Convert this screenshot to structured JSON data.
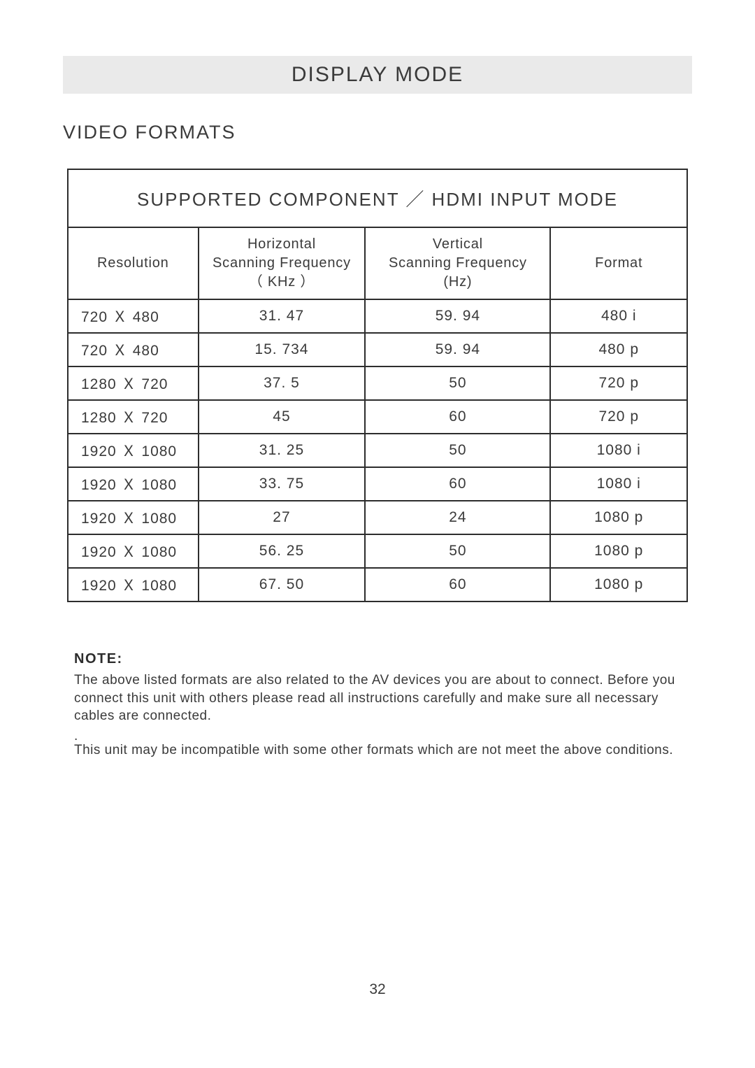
{
  "page": {
    "title": "DISPLAY MODE",
    "section_title": "VIDEO FORMATS",
    "page_number": "32",
    "background_color": "#ffffff",
    "title_bar_bg": "#eaeaea",
    "text_color": "#3a3a3a",
    "border_color": "#2d2d2d"
  },
  "table": {
    "caption": "SUPPORTED COMPONENT ／ HDMI INPUT MODE",
    "columns": [
      "Resolution",
      "Horizontal\nScanning Frequency\n（ KHz ）",
      "Vertical\nScanning Frequency\n(Hz)",
      "Format"
    ],
    "col_widths_pct": [
      21,
      27,
      30,
      22
    ],
    "rows": [
      [
        "720 Ｘ 480",
        "31. 47",
        "59. 94",
        "480 i"
      ],
      [
        "720 Ｘ 480",
        "15. 734",
        "59. 94",
        "480 p"
      ],
      [
        "1280 Ｘ 720",
        "37. 5",
        "50",
        "720 p"
      ],
      [
        "1280 Ｘ 720",
        "45",
        "60",
        "720 p"
      ],
      [
        "1920 Ｘ 1080",
        "31. 25",
        "50",
        "1080 i"
      ],
      [
        "1920 Ｘ 1080",
        "33. 75",
        "60",
        "1080 i"
      ],
      [
        "1920 Ｘ 1080",
        "27",
        "24",
        "1080 p"
      ],
      [
        "1920 Ｘ 1080",
        "56. 25",
        "50",
        "1080 p"
      ],
      [
        "1920 Ｘ 1080",
        "67. 50",
        "60",
        "1080 p"
      ]
    ]
  },
  "note": {
    "heading": "NOTE:",
    "p1": "The above listed formats are also related to the AV devices you are about to connect. Before you connect this unit with others please read all instructions carefully and make sure all necessary cables are connected.",
    "dot": ".",
    "p2": "This unit may be incompatible with some other formats which are not meet the above conditions."
  }
}
